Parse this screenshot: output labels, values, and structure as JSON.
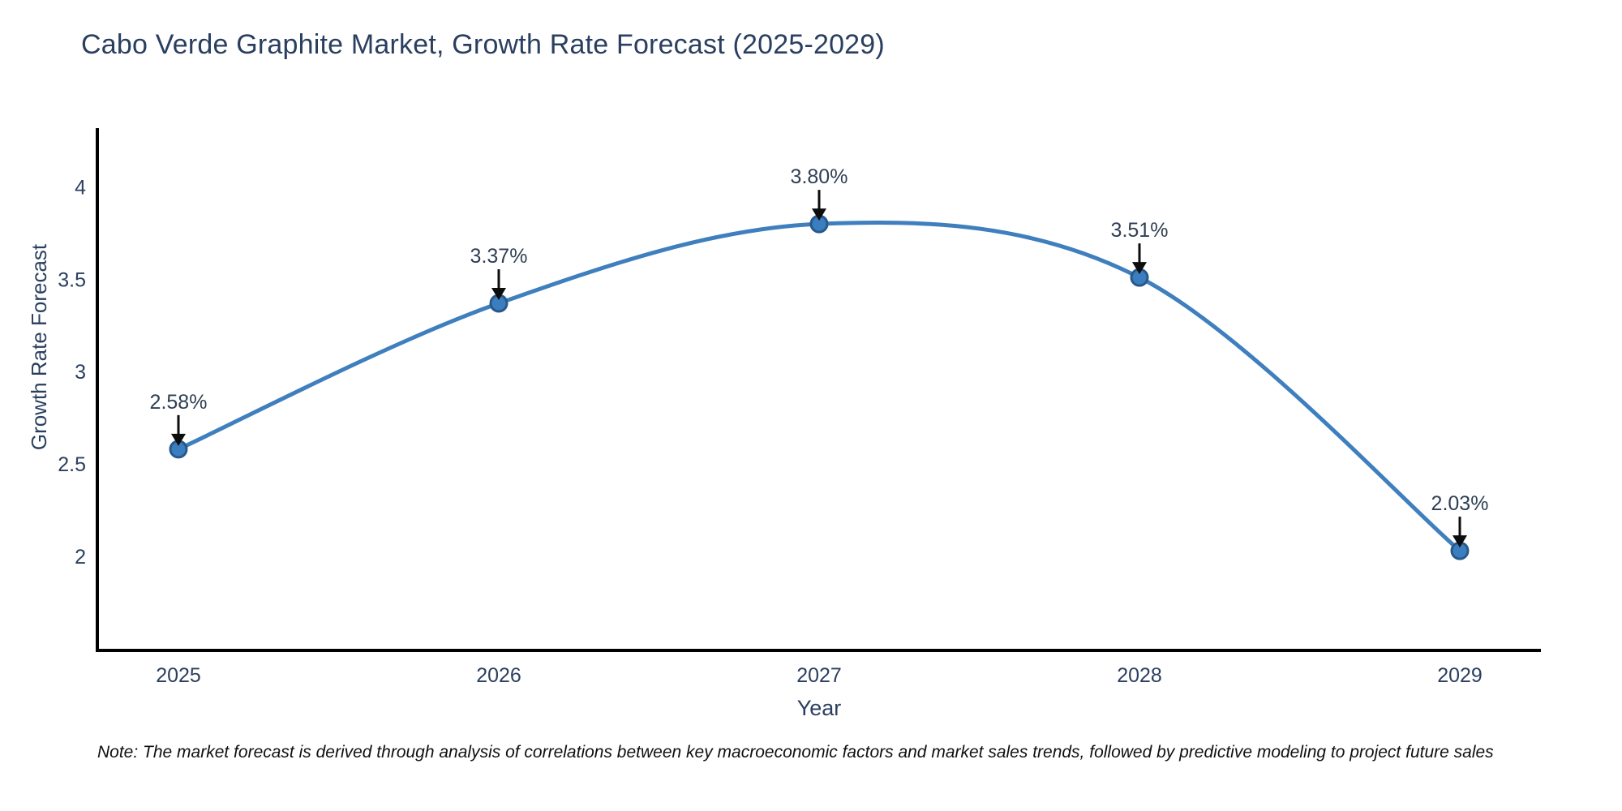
{
  "window": {
    "background": "#ffffff"
  },
  "chart": {
    "title": "Cabo Verde Graphite Market, Growth Rate Forecast (2025-2029)",
    "xlabel": "Year",
    "ylabel": "Growth Rate Forecast",
    "note": "Note: The market forecast is derived through analysis of correlations between key macroeconomic factors and market sales trends, followed by predictive modeling to project future sales",
    "colors": {
      "line": "#3f7fbe",
      "marker_fill": "#3a7ebf",
      "marker_edge": "#27598b",
      "axis": "#000000",
      "label_text": "#2a3f5f",
      "annotation_text": "#2f3f54",
      "arrow": "#0d0d0d",
      "note_text": "#101010"
    }
  },
  "chart_data": {
    "type": "line",
    "title": "Cabo Verde Graphite Market, Growth Rate Forecast (2025-2029)",
    "xlabel": "Year",
    "ylabel": "Growth Rate Forecast",
    "categories": [
      "2025",
      "2026",
      "2027",
      "2028",
      "2029"
    ],
    "values": [
      2.58,
      3.37,
      3.8,
      3.51,
      2.03
    ],
    "point_labels": [
      "2.58%",
      "3.37%",
      "3.80%",
      "3.51%",
      "2.03%"
    ],
    "yticks": [
      2,
      2.5,
      3,
      3.5,
      4
    ],
    "ytick_labels": [
      "2",
      "2.5",
      "3",
      "3.5",
      "4"
    ],
    "ylim": [
      1.49,
      4.31
    ],
    "grid": false,
    "legend": "none",
    "line_shape": "spline",
    "markers": "circle",
    "annotations": "each point labeled with its percent value and a downward arrow above the marker"
  }
}
